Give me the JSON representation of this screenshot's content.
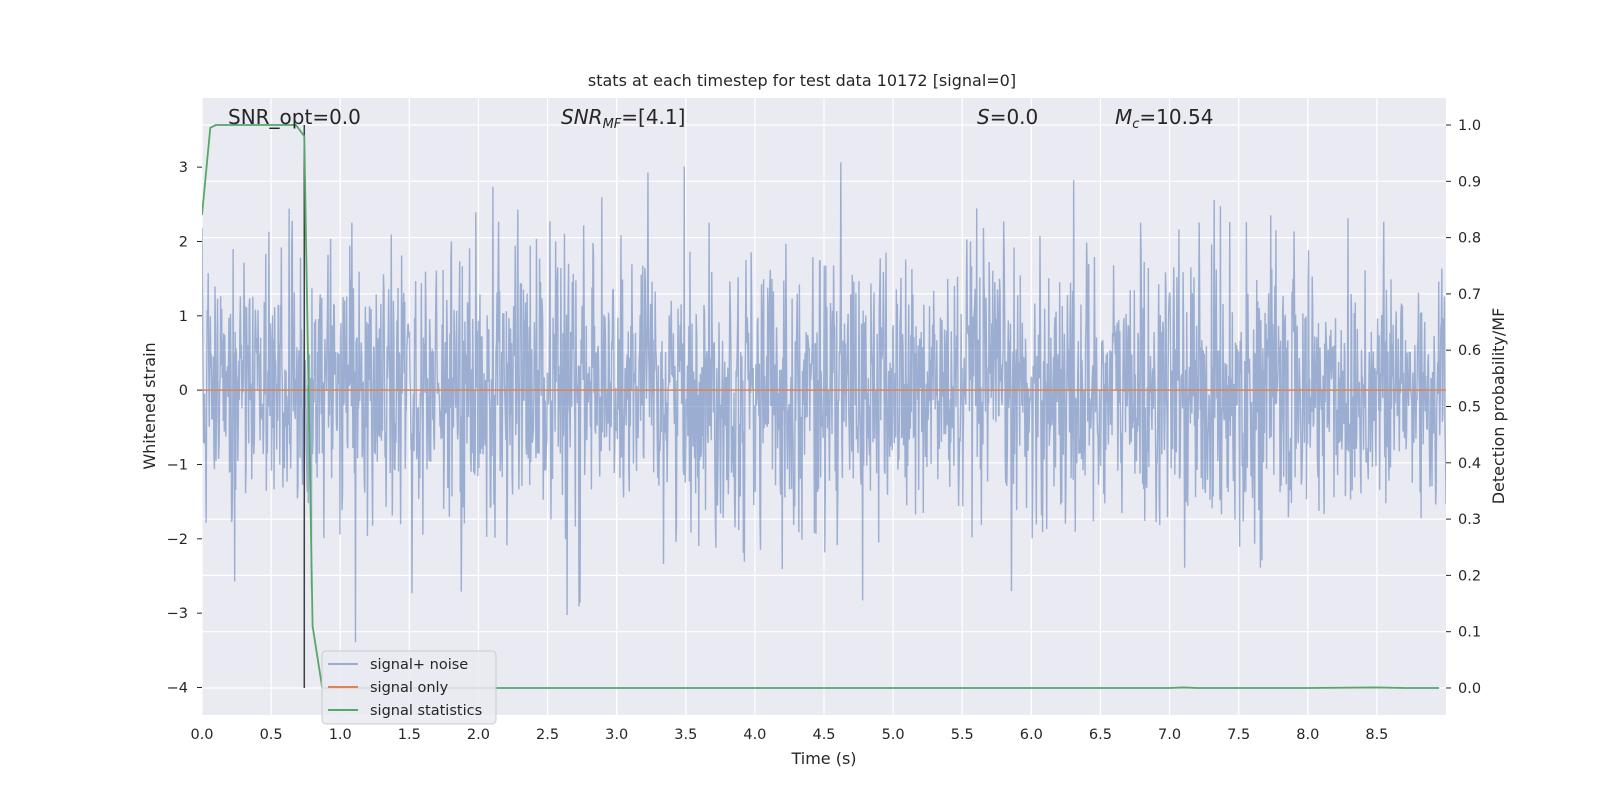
{
  "chart_data": {
    "type": "line",
    "title": "stats at each timestep for test data 10172 [signal=0]",
    "xlabel": "Time (s)",
    "ylabel_left": "Whitened strain",
    "ylabel_right": "Detection probability/MF",
    "xlim": [
      0.0,
      9.0
    ],
    "ylim_left": [
      -4.37,
      3.93
    ],
    "ylim_right": [
      -0.048,
      1.048
    ],
    "x_ticks": [
      "0.0",
      "0.5",
      "1.0",
      "1.5",
      "2.0",
      "2.5",
      "3.0",
      "3.5",
      "4.0",
      "4.5",
      "5.0",
      "5.5",
      "6.0",
      "6.5",
      "7.0",
      "7.5",
      "8.0",
      "8.5"
    ],
    "x_tick_values": [
      0.0,
      0.5,
      1.0,
      1.5,
      2.0,
      2.5,
      3.0,
      3.5,
      4.0,
      4.5,
      5.0,
      5.5,
      6.0,
      6.5,
      7.0,
      7.5,
      8.0,
      8.5
    ],
    "y_left_ticks": [
      "3",
      "2",
      "1",
      "0",
      "−1",
      "−2",
      "−3",
      "−4"
    ],
    "y_left_tick_values": [
      3,
      2,
      1,
      0,
      -1,
      -2,
      -3,
      -4
    ],
    "y_right_ticks": [
      "1.0",
      "0.9",
      "0.8",
      "0.7",
      "0.6",
      "0.5",
      "0.4",
      "0.3",
      "0.2",
      "0.1",
      "0.0"
    ],
    "y_right_tick_values": [
      1.0,
      0.9,
      0.8,
      0.7,
      0.6,
      0.5,
      0.4,
      0.3,
      0.2,
      0.1,
      0.0
    ],
    "grid": true,
    "legend_position": "lower-left",
    "annotations": {
      "snr_opt": "SNR_opt=0.0",
      "snr_mf_base": "SNR",
      "snr_mf_sub": "MF",
      "snr_mf_value": "=[4.1]",
      "s_symbol": "S",
      "s_value": "=0.0",
      "mc_symbol": "M",
      "mc_sub": "c",
      "mc_value": "=10.54"
    },
    "marker_line_x": 0.74,
    "series": [
      {
        "name": "signal+ noise",
        "axis": "left",
        "color": "#4c72b0",
        "description_type": "noise",
        "approx_std": 0.9,
        "x_range": [
          0.0,
          9.0
        ]
      },
      {
        "name": "signal only",
        "axis": "left",
        "color": "#dd8452",
        "x": [
          0.0,
          9.0
        ],
        "y": [
          0.0,
          0.0
        ]
      },
      {
        "name": "signal statistics",
        "axis": "right",
        "color": "#55a868",
        "x": [
          0.0,
          0.06,
          0.1,
          0.2,
          0.3,
          0.4,
          0.5,
          0.6,
          0.68,
          0.74,
          0.8,
          0.87,
          0.95,
          1.5,
          3.0,
          5.0,
          7.0,
          7.1,
          7.2,
          8.0,
          8.5,
          8.7,
          8.95
        ],
        "y": [
          0.84,
          0.995,
          1.0,
          1.0,
          1.0,
          1.0,
          1.0,
          1.0,
          1.0,
          0.98,
          0.11,
          0.0,
          0.0,
          0.0,
          0.0,
          0.0,
          0.0,
          0.001,
          0.0,
          0.0,
          0.001,
          0.0,
          0.0
        ]
      }
    ]
  }
}
